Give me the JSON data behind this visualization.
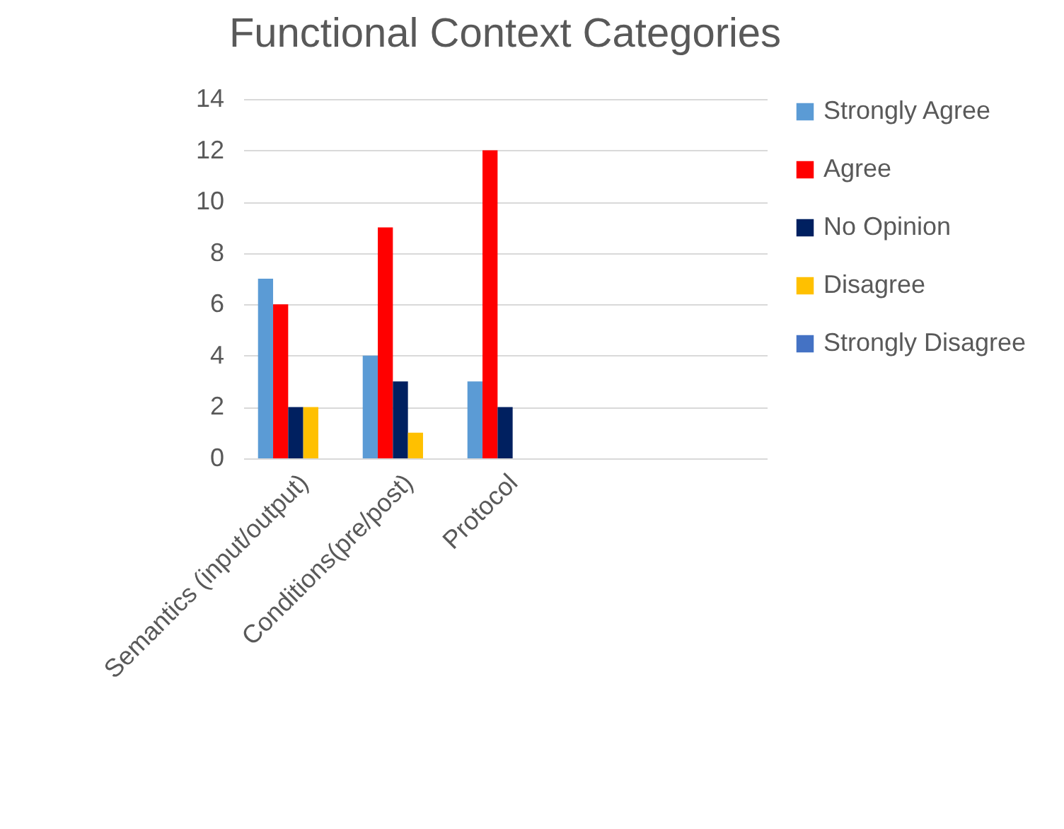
{
  "chart_data": {
    "type": "bar",
    "title": "Functional Context Categories",
    "categories": [
      "Semantics (input/output)",
      "Conditions(pre/post)",
      "Protocol",
      null,
      null
    ],
    "series": [
      {
        "name": "Strongly Agree",
        "color": "#5b9bd5",
        "values": [
          7,
          4,
          3,
          null,
          null
        ]
      },
      {
        "name": "Agree",
        "color": "#ff0000",
        "values": [
          6,
          9,
          12,
          null,
          null
        ]
      },
      {
        "name": "No Opinion",
        "color": "#002060",
        "values": [
          2,
          3,
          2,
          null,
          null
        ]
      },
      {
        "name": "Disagree",
        "color": "#ffc000",
        "values": [
          2,
          1,
          null,
          null,
          null
        ]
      },
      {
        "name": "Strongly Disagree",
        "color": "#4472c4",
        "values": [
          null,
          null,
          null,
          null,
          null
        ]
      }
    ],
    "ylim": [
      0,
      14
    ],
    "yticks": [
      0,
      2,
      4,
      6,
      8,
      10,
      12,
      14
    ],
    "grid": "y",
    "legend": "right"
  }
}
